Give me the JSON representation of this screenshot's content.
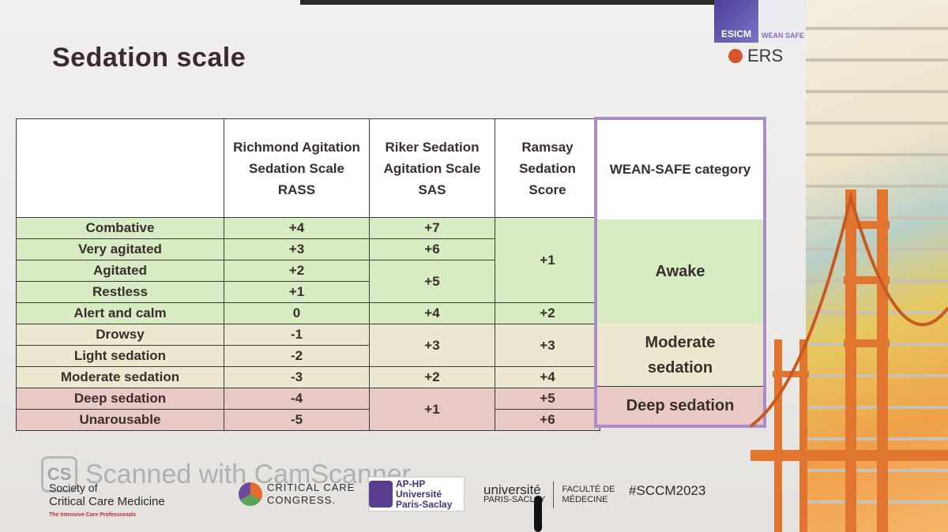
{
  "title": "Sedation scale",
  "logos": {
    "esicm": "ESICM",
    "weansafe": "WEAN SAFE",
    "ers": "ERS"
  },
  "table": {
    "headers": [
      "",
      "Richmond Agitation Sedation Scale RASS",
      "Riker Sedation Agitation Scale SAS",
      "Ramsay Sedation Score"
    ],
    "header_lines": {
      "rass": [
        "Richmond Agitation",
        "Sedation Scale",
        "RASS"
      ],
      "sas": [
        "Riker Sedation",
        "Agitation Scale",
        "SAS"
      ],
      "ramsay": [
        "Ramsay",
        "Sedation",
        "Score"
      ]
    },
    "rows": [
      {
        "label": "Combative",
        "rass": "+4"
      },
      {
        "label": "Very agitated",
        "rass": "+3"
      },
      {
        "label": "Agitated",
        "rass": "+2"
      },
      {
        "label": "Restless",
        "rass": "+1"
      },
      {
        "label": "Alert and calm",
        "rass": "0"
      },
      {
        "label": "Drowsy",
        "rass": "-1"
      },
      {
        "label": "Light sedation",
        "rass": "-2"
      },
      {
        "label": "Moderate sedation",
        "rass": "-3"
      },
      {
        "label": "Deep sedation",
        "rass": "-4"
      },
      {
        "label": "Unarousable",
        "rass": "-5"
      }
    ],
    "sas": [
      "+7",
      "+6",
      "+5",
      "+4",
      "+3",
      "+2",
      "+1"
    ],
    "ramsay": [
      "+1",
      "+2",
      "+3",
      "+4",
      "+5",
      "+6"
    ],
    "colors": {
      "awake": "#d8ecc4",
      "moderate": "#ece7cf",
      "deep": "#e8c9c6",
      "wean_border": "#a98cc8"
    }
  },
  "wean_safe": {
    "header": "WEAN-SAFE category",
    "awake": "Awake",
    "moderate_line1": "Moderate",
    "moderate_line2": "sedation",
    "deep": "Deep sedation"
  },
  "watermark": {
    "badge": "CS",
    "text": "Scanned with CamScanner"
  },
  "footer": {
    "sccm_line1": "Society of",
    "sccm_line2": "Critical Care Medicine",
    "sccm_tagline": "The Intensive Care Professionals",
    "ccc_line1": "CRITICAL CARE",
    "ccc_line2": "CONGRESS.",
    "ap_line1": "AP-HP",
    "ap_line2": "Université",
    "ap_line3": "Paris-Saclay",
    "ups_line1": "université",
    "ups_line2": "PARIS-SACLAY",
    "fac_line1": "FACULTÉ DE",
    "fac_line2": "MÉDECINE",
    "hashtag": "#SCCM2023"
  }
}
